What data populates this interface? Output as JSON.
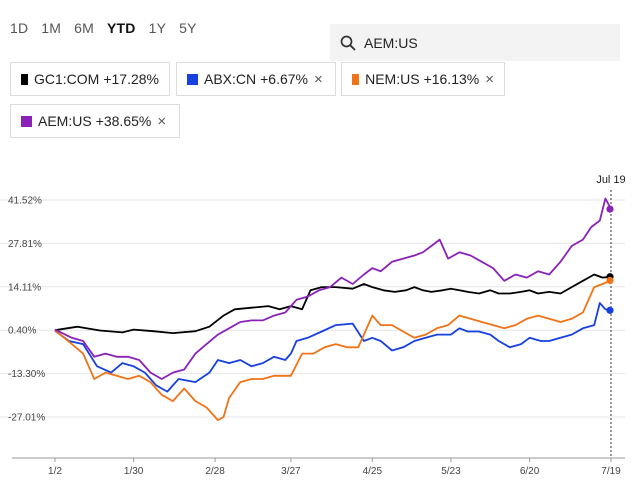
{
  "ranges": [
    {
      "label": "1D",
      "active": false
    },
    {
      "label": "1M",
      "active": false
    },
    {
      "label": "6M",
      "active": false
    },
    {
      "label": "YTD",
      "active": true
    },
    {
      "label": "1Y",
      "active": false
    },
    {
      "label": "5Y",
      "active": false
    }
  ],
  "search": {
    "icon": "search-icon",
    "value": "AEM:US"
  },
  "legend": [
    {
      "ticker": "GC1:COM",
      "change": "+17.28%",
      "color": "#000000",
      "removable": false
    },
    {
      "ticker": "ABX:CN",
      "change": "+6.67%",
      "color": "#1640e0",
      "removable": true
    },
    {
      "ticker": "NEM:US",
      "change": "+16.13%",
      "color": "#f07318",
      "removable": true
    },
    {
      "ticker": "AEM:US",
      "change": "+38.65%",
      "color": "#8a22b8",
      "removable": true
    }
  ],
  "close_glyph": "×",
  "tooltip_label": "Jul 19",
  "chart_data": {
    "type": "line",
    "x_tick_labels": [
      "1/2",
      "1/30",
      "2/28",
      "3/27",
      "4/25",
      "5/23",
      "6/20",
      "7/19"
    ],
    "y_tick_labels": [
      "41.52%",
      "27.81%",
      "14.11%",
      "0.40%",
      "-13.30%",
      "-27.01%"
    ],
    "y_ticks": [
      41.52,
      27.81,
      14.11,
      0.4,
      -13.3,
      -27.01
    ],
    "ylim": [
      -37,
      49
    ],
    "x_domain": [
      0,
      199
    ],
    "x_tick_positions": [
      0,
      28,
      57,
      84,
      113,
      141,
      169,
      198
    ],
    "series": [
      {
        "name": "GC1:COM",
        "color": "#000000",
        "end_value": 17.28,
        "points": [
          [
            0,
            0.4
          ],
          [
            8,
            1.5
          ],
          [
            16,
            0.3
          ],
          [
            24,
            -0.3
          ],
          [
            28,
            0.6
          ],
          [
            35,
            0.1
          ],
          [
            42,
            -0.5
          ],
          [
            50,
            0.1
          ],
          [
            55,
            1.5
          ],
          [
            60,
            5
          ],
          [
            64,
            7
          ],
          [
            70,
            7.5
          ],
          [
            76,
            8
          ],
          [
            80,
            7
          ],
          [
            84,
            8
          ],
          [
            88,
            7
          ],
          [
            91,
            13
          ],
          [
            95,
            14
          ],
          [
            100,
            14
          ],
          [
            106,
            13.5
          ],
          [
            110,
            15
          ],
          [
            113,
            14
          ],
          [
            117,
            13
          ],
          [
            121,
            12.5
          ],
          [
            125,
            13
          ],
          [
            128,
            14
          ],
          [
            131,
            13
          ],
          [
            134,
            12.5
          ],
          [
            138,
            13
          ],
          [
            141,
            13.5
          ],
          [
            144,
            13
          ],
          [
            147,
            12.5
          ],
          [
            151,
            12
          ],
          [
            155,
            13
          ],
          [
            158,
            12
          ],
          [
            162,
            12
          ],
          [
            166,
            12.5
          ],
          [
            169,
            13
          ],
          [
            172,
            12
          ],
          [
            176,
            12.5
          ],
          [
            180,
            12
          ],
          [
            184,
            14
          ],
          [
            188,
            16
          ],
          [
            192,
            18
          ],
          [
            195,
            17
          ],
          [
            198,
            17.3
          ]
        ]
      },
      {
        "name": "ABX:CN",
        "color": "#1640e0",
        "end_value": 6.67,
        "points": [
          [
            0,
            0.2
          ],
          [
            5,
            -3
          ],
          [
            10,
            -4
          ],
          [
            15,
            -11
          ],
          [
            20,
            -13
          ],
          [
            24,
            -10
          ],
          [
            28,
            -11
          ],
          [
            32,
            -13
          ],
          [
            36,
            -17
          ],
          [
            40,
            -19
          ],
          [
            44,
            -15
          ],
          [
            50,
            -16
          ],
          [
            55,
            -13
          ],
          [
            58,
            -9
          ],
          [
            62,
            -10
          ],
          [
            66,
            -9
          ],
          [
            70,
            -11
          ],
          [
            74,
            -10
          ],
          [
            78,
            -8
          ],
          [
            82,
            -9
          ],
          [
            84,
            -7
          ],
          [
            86,
            -3
          ],
          [
            90,
            -2
          ],
          [
            95,
            0
          ],
          [
            100,
            2
          ],
          [
            106,
            2.5
          ],
          [
            110,
            -3
          ],
          [
            113,
            -2
          ],
          [
            116,
            -3
          ],
          [
            120,
            -6
          ],
          [
            124,
            -5
          ],
          [
            128,
            -3
          ],
          [
            132,
            -2
          ],
          [
            136,
            -1
          ],
          [
            141,
            -1
          ],
          [
            144,
            1
          ],
          [
            147,
            0
          ],
          [
            151,
            0
          ],
          [
            155,
            -1
          ],
          [
            158,
            -3
          ],
          [
            162,
            -5
          ],
          [
            166,
            -4
          ],
          [
            169,
            -2
          ],
          [
            173,
            -3
          ],
          [
            176,
            -3
          ],
          [
            180,
            -2
          ],
          [
            184,
            -1
          ],
          [
            188,
            1
          ],
          [
            192,
            2
          ],
          [
            194,
            9
          ],
          [
            196,
            7
          ],
          [
            198,
            6.7
          ]
        ]
      },
      {
        "name": "NEM:US",
        "color": "#f07318",
        "end_value": 16.13,
        "points": [
          [
            0,
            0.4
          ],
          [
            6,
            -4
          ],
          [
            10,
            -7
          ],
          [
            14,
            -15
          ],
          [
            18,
            -13
          ],
          [
            22,
            -14
          ],
          [
            26,
            -15
          ],
          [
            30,
            -14
          ],
          [
            34,
            -16
          ],
          [
            38,
            -20
          ],
          [
            42,
            -22
          ],
          [
            46,
            -18
          ],
          [
            50,
            -22
          ],
          [
            54,
            -24
          ],
          [
            58,
            -28
          ],
          [
            60,
            -27
          ],
          [
            62,
            -21
          ],
          [
            66,
            -16
          ],
          [
            70,
            -15
          ],
          [
            74,
            -15
          ],
          [
            78,
            -14
          ],
          [
            82,
            -14
          ],
          [
            84,
            -14
          ],
          [
            88,
            -7
          ],
          [
            92,
            -7
          ],
          [
            96,
            -5
          ],
          [
            100,
            -4
          ],
          [
            104,
            -5
          ],
          [
            108,
            -5
          ],
          [
            110,
            -1
          ],
          [
            112,
            3
          ],
          [
            113,
            5
          ],
          [
            116,
            2
          ],
          [
            120,
            2
          ],
          [
            124,
            0
          ],
          [
            128,
            -2
          ],
          [
            132,
            -1
          ],
          [
            136,
            1
          ],
          [
            140,
            2
          ],
          [
            144,
            5
          ],
          [
            148,
            4
          ],
          [
            152,
            3
          ],
          [
            156,
            2
          ],
          [
            160,
            1
          ],
          [
            164,
            2
          ],
          [
            168,
            4
          ],
          [
            172,
            5
          ],
          [
            176,
            4
          ],
          [
            180,
            3
          ],
          [
            184,
            4
          ],
          [
            188,
            6
          ],
          [
            192,
            14
          ],
          [
            195,
            15
          ],
          [
            198,
            16.1
          ]
        ]
      },
      {
        "name": "AEM:US",
        "color": "#8a22b8",
        "end_value": 38.65,
        "points": [
          [
            0,
            0.6
          ],
          [
            6,
            -2
          ],
          [
            10,
            -3
          ],
          [
            14,
            -8
          ],
          [
            18,
            -7
          ],
          [
            22,
            -8
          ],
          [
            26,
            -8
          ],
          [
            30,
            -9
          ],
          [
            34,
            -13
          ],
          [
            38,
            -15
          ],
          [
            42,
            -13
          ],
          [
            46,
            -12
          ],
          [
            50,
            -7
          ],
          [
            54,
            -4
          ],
          [
            58,
            -1
          ],
          [
            62,
            1
          ],
          [
            66,
            3
          ],
          [
            70,
            3.5
          ],
          [
            74,
            3.5
          ],
          [
            78,
            5
          ],
          [
            82,
            6
          ],
          [
            84,
            8
          ],
          [
            86,
            10
          ],
          [
            90,
            11
          ],
          [
            94,
            13
          ],
          [
            98,
            14
          ],
          [
            102,
            17
          ],
          [
            106,
            15
          ],
          [
            110,
            18
          ],
          [
            113,
            20
          ],
          [
            116,
            19
          ],
          [
            120,
            22
          ],
          [
            124,
            23
          ],
          [
            128,
            24
          ],
          [
            131,
            25
          ],
          [
            134,
            27
          ],
          [
            137,
            29
          ],
          [
            140,
            23
          ],
          [
            144,
            25
          ],
          [
            148,
            24
          ],
          [
            152,
            22
          ],
          [
            156,
            20
          ],
          [
            160,
            16
          ],
          [
            164,
            18
          ],
          [
            168,
            17
          ],
          [
            172,
            19
          ],
          [
            176,
            18
          ],
          [
            180,
            22
          ],
          [
            184,
            27
          ],
          [
            188,
            29
          ],
          [
            191,
            33
          ],
          [
            194,
            35
          ],
          [
            196,
            42
          ],
          [
            198,
            38.7
          ]
        ]
      }
    ]
  }
}
